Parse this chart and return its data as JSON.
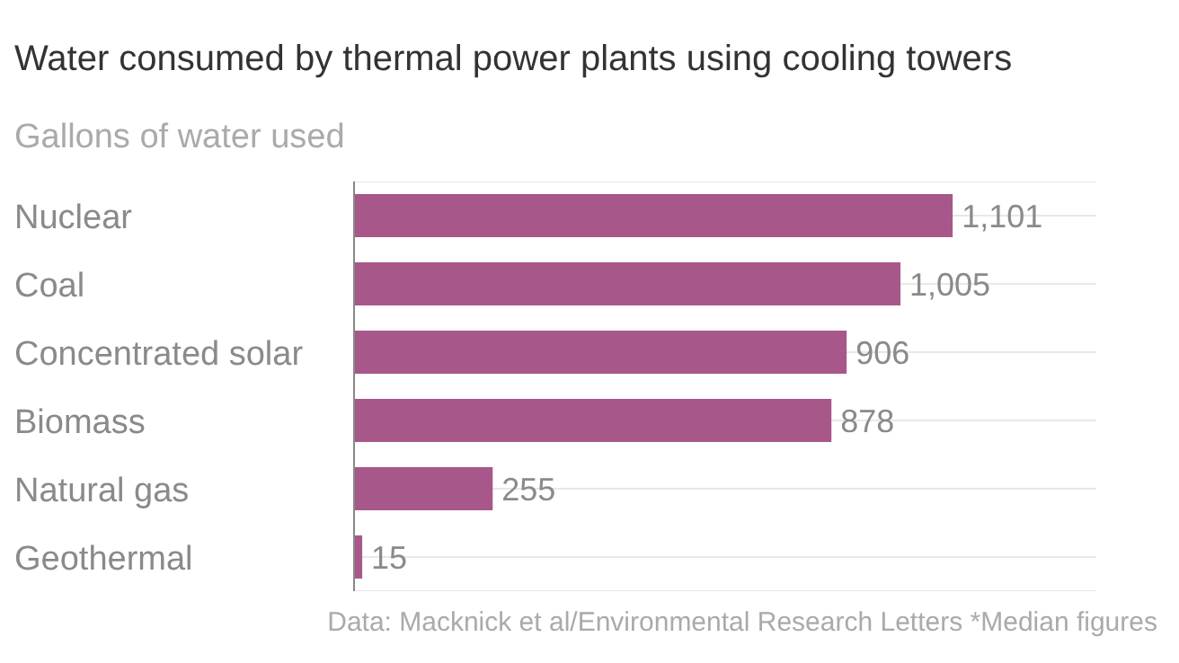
{
  "chart_data": {
    "type": "bar",
    "orientation": "horizontal",
    "title": "Water consumed by thermal power plants using cooling towers",
    "subtitle": "Gallons of water used",
    "categories": [
      "Nuclear",
      "Coal",
      "Concentrated solar",
      "Biomass",
      "Natural gas",
      "Geothermal"
    ],
    "values": [
      1101,
      1005,
      906,
      878,
      255,
      15
    ],
    "value_labels": [
      "1,101",
      "1,005",
      "906",
      "878",
      "255",
      "15"
    ],
    "color": "#a8578a",
    "grid": "y",
    "annotations": [
      "Data: Macknick et al/Environmental Research Letters *Median figures"
    ]
  }
}
